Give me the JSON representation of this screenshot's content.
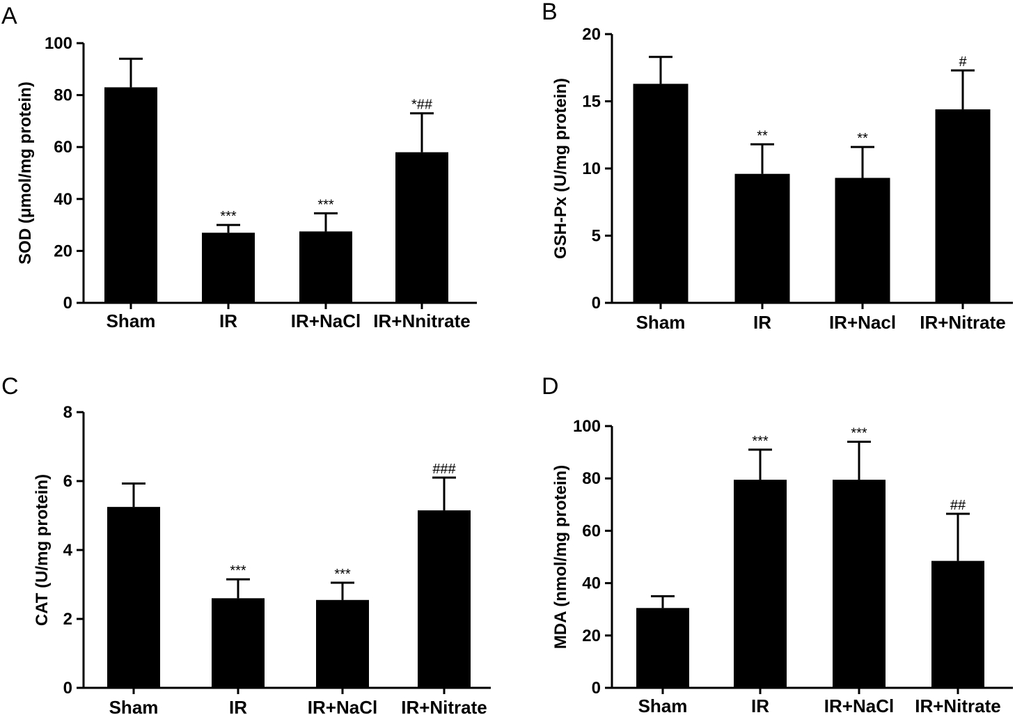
{
  "chart_data": [
    {
      "panel": "A",
      "type": "bar",
      "categories": [
        "Sham",
        "IR",
        "IR+NaCl",
        "IR+Nnitrate"
      ],
      "values": [
        83,
        27,
        27.5,
        58
      ],
      "errors": [
        11,
        3,
        7,
        15
      ],
      "annotations": [
        "",
        "***",
        "***",
        "*##"
      ],
      "ylabel": "SOD (μmol/mg protein)",
      "ylim": [
        0,
        100
      ],
      "yticks": [
        0,
        20,
        40,
        60,
        80,
        100
      ]
    },
    {
      "panel": "B",
      "type": "bar",
      "categories": [
        "Sham",
        "IR",
        "IR+Nacl",
        "IR+Nitrate"
      ],
      "values": [
        16.3,
        9.6,
        9.3,
        14.4
      ],
      "errors": [
        2.0,
        2.2,
        2.3,
        2.9
      ],
      "annotations": [
        "",
        "**",
        "**",
        "#"
      ],
      "ylabel": "GSH-Px (U/mg protein)",
      "ylim": [
        0,
        20
      ],
      "yticks": [
        0,
        5,
        10,
        15,
        20
      ]
    },
    {
      "panel": "C",
      "type": "bar",
      "categories": [
        "Sham",
        "IR",
        "IR+NaCl",
        "IR+Nitrate"
      ],
      "values": [
        5.25,
        2.6,
        2.55,
        5.15
      ],
      "errors": [
        0.68,
        0.55,
        0.5,
        0.95
      ],
      "annotations": [
        "",
        "***",
        "***",
        "###"
      ],
      "ylabel": "CAT (U/mg protein)",
      "ylim": [
        0,
        8
      ],
      "yticks": [
        0,
        2,
        4,
        6,
        8
      ]
    },
    {
      "panel": "D",
      "type": "bar",
      "categories": [
        "Sham",
        "IR",
        "IR+NaCl",
        "IR+Nitrate"
      ],
      "values": [
        30.5,
        79.5,
        79.5,
        48.5
      ],
      "errors": [
        4.5,
        11.5,
        14.5,
        18
      ],
      "annotations": [
        "",
        "***",
        "***",
        "##"
      ],
      "ylabel": "MDA (nmol/mg protein)",
      "ylim": [
        0,
        100
      ],
      "yticks": [
        0,
        20,
        40,
        60,
        80,
        100
      ]
    }
  ]
}
